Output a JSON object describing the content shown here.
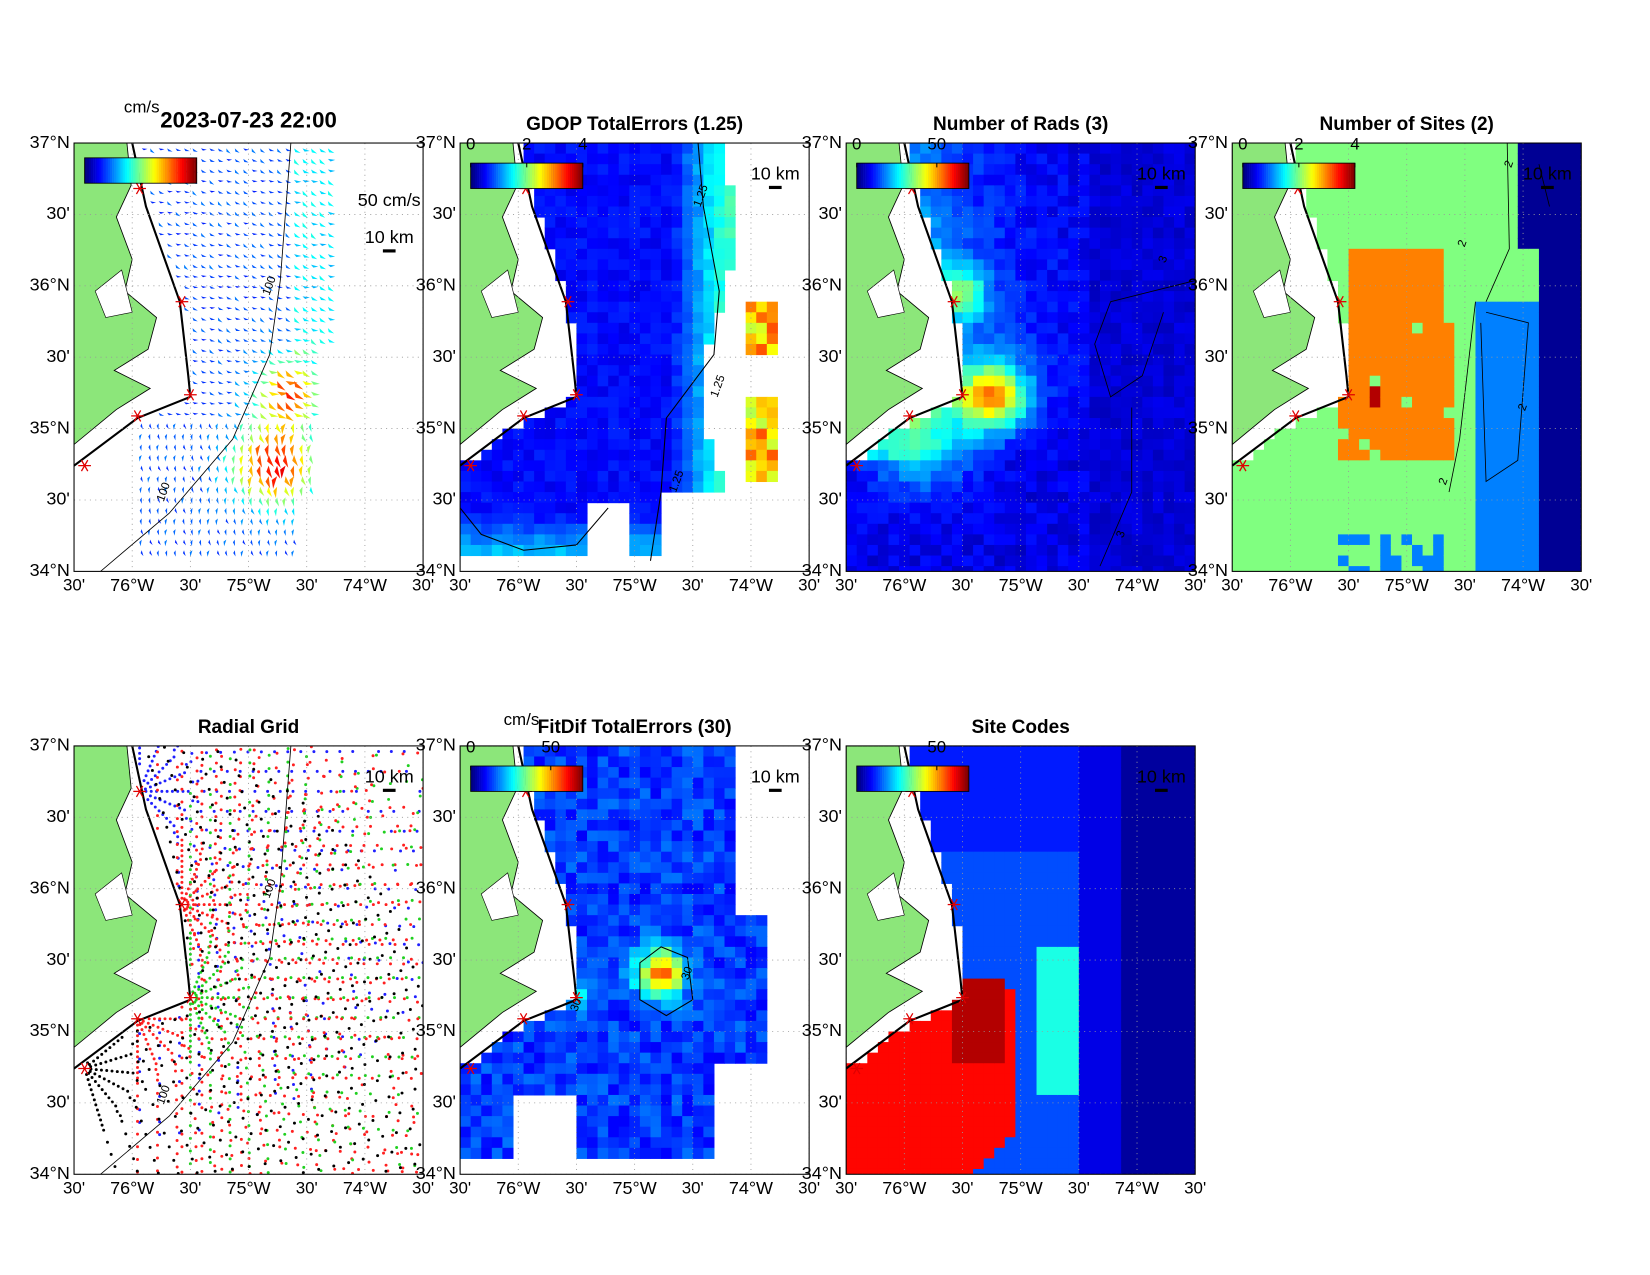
{
  "lat_range": [
    34,
    37
  ],
  "lon_range": [
    -76.5,
    -73.5
  ],
  "lat_ticks": [
    {
      "value": 37,
      "label": "37°N"
    },
    {
      "value": 36.5,
      "label": "30'"
    },
    {
      "value": 36,
      "label": "36°N"
    },
    {
      "value": 35.5,
      "label": "30'"
    },
    {
      "value": 35,
      "label": "35°N"
    },
    {
      "value": 34.5,
      "label": "30'"
    },
    {
      "value": 34,
      "label": "34°N"
    }
  ],
  "lon_ticks": [
    {
      "value": -76.5,
      "label": "30'"
    },
    {
      "value": -76,
      "label": "76°W"
    },
    {
      "value": -75.5,
      "label": "30'"
    },
    {
      "value": -75,
      "label": "75°W"
    },
    {
      "value": -74.5,
      "label": "30'"
    },
    {
      "value": -74,
      "label": "74°W"
    },
    {
      "value": -73.5,
      "label": "30'"
    }
  ],
  "panels": [
    {
      "title": "2023-07-23 22:00",
      "kind": "vectors",
      "colorbar": {
        "unit": "cm/s",
        "clim": [
          0,
          70
        ],
        "ticks": []
      },
      "scale_labels": [
        "50 cm/s",
        "10 km"
      ],
      "contour_labels": [
        100,
        100
      ]
    },
    {
      "title": "GDOP TotalErrors (1.25)",
      "kind": "gdop",
      "colorbar": {
        "clim": [
          0,
          4
        ],
        "ticks": [
          0,
          2,
          4
        ]
      },
      "scale_labels": [
        "10 km"
      ],
      "contour_labels": [
        1.25,
        1.25,
        1.25
      ]
    },
    {
      "title": "Number of Rads (3)",
      "kind": "rads",
      "colorbar": {
        "clim": [
          0,
          70
        ],
        "ticks": [
          0,
          50
        ]
      },
      "scale_labels": [
        "10 km"
      ],
      "contour_labels": [
        3,
        3
      ]
    },
    {
      "title": "Number of Sites (2)",
      "kind": "sites",
      "colorbar": {
        "clim": [
          0,
          4
        ],
        "ticks": [
          0,
          2,
          4
        ]
      },
      "scale_labels": [
        "10 km"
      ],
      "contour_labels": [
        2,
        2,
        2,
        2
      ]
    },
    {
      "title": "Radial Grid",
      "kind": "radial",
      "scale_labels": [
        "10 km"
      ],
      "contour_labels": [
        100,
        100
      ]
    },
    {
      "title": "FitDif TotalErrors (30)",
      "kind": "fitdif",
      "colorbar": {
        "unit": "cm/s",
        "clim": [
          0,
          70
        ],
        "ticks": [
          0,
          50
        ]
      },
      "scale_labels": [
        "10 km"
      ],
      "contour_labels": [
        30,
        30
      ]
    },
    {
      "title": "Site Codes",
      "kind": "codes",
      "colorbar": {
        "clim": [
          0,
          70
        ],
        "ticks": [
          50
        ]
      },
      "scale_labels": [
        "10 km"
      ],
      "contour_labels": []
    }
  ]
}
